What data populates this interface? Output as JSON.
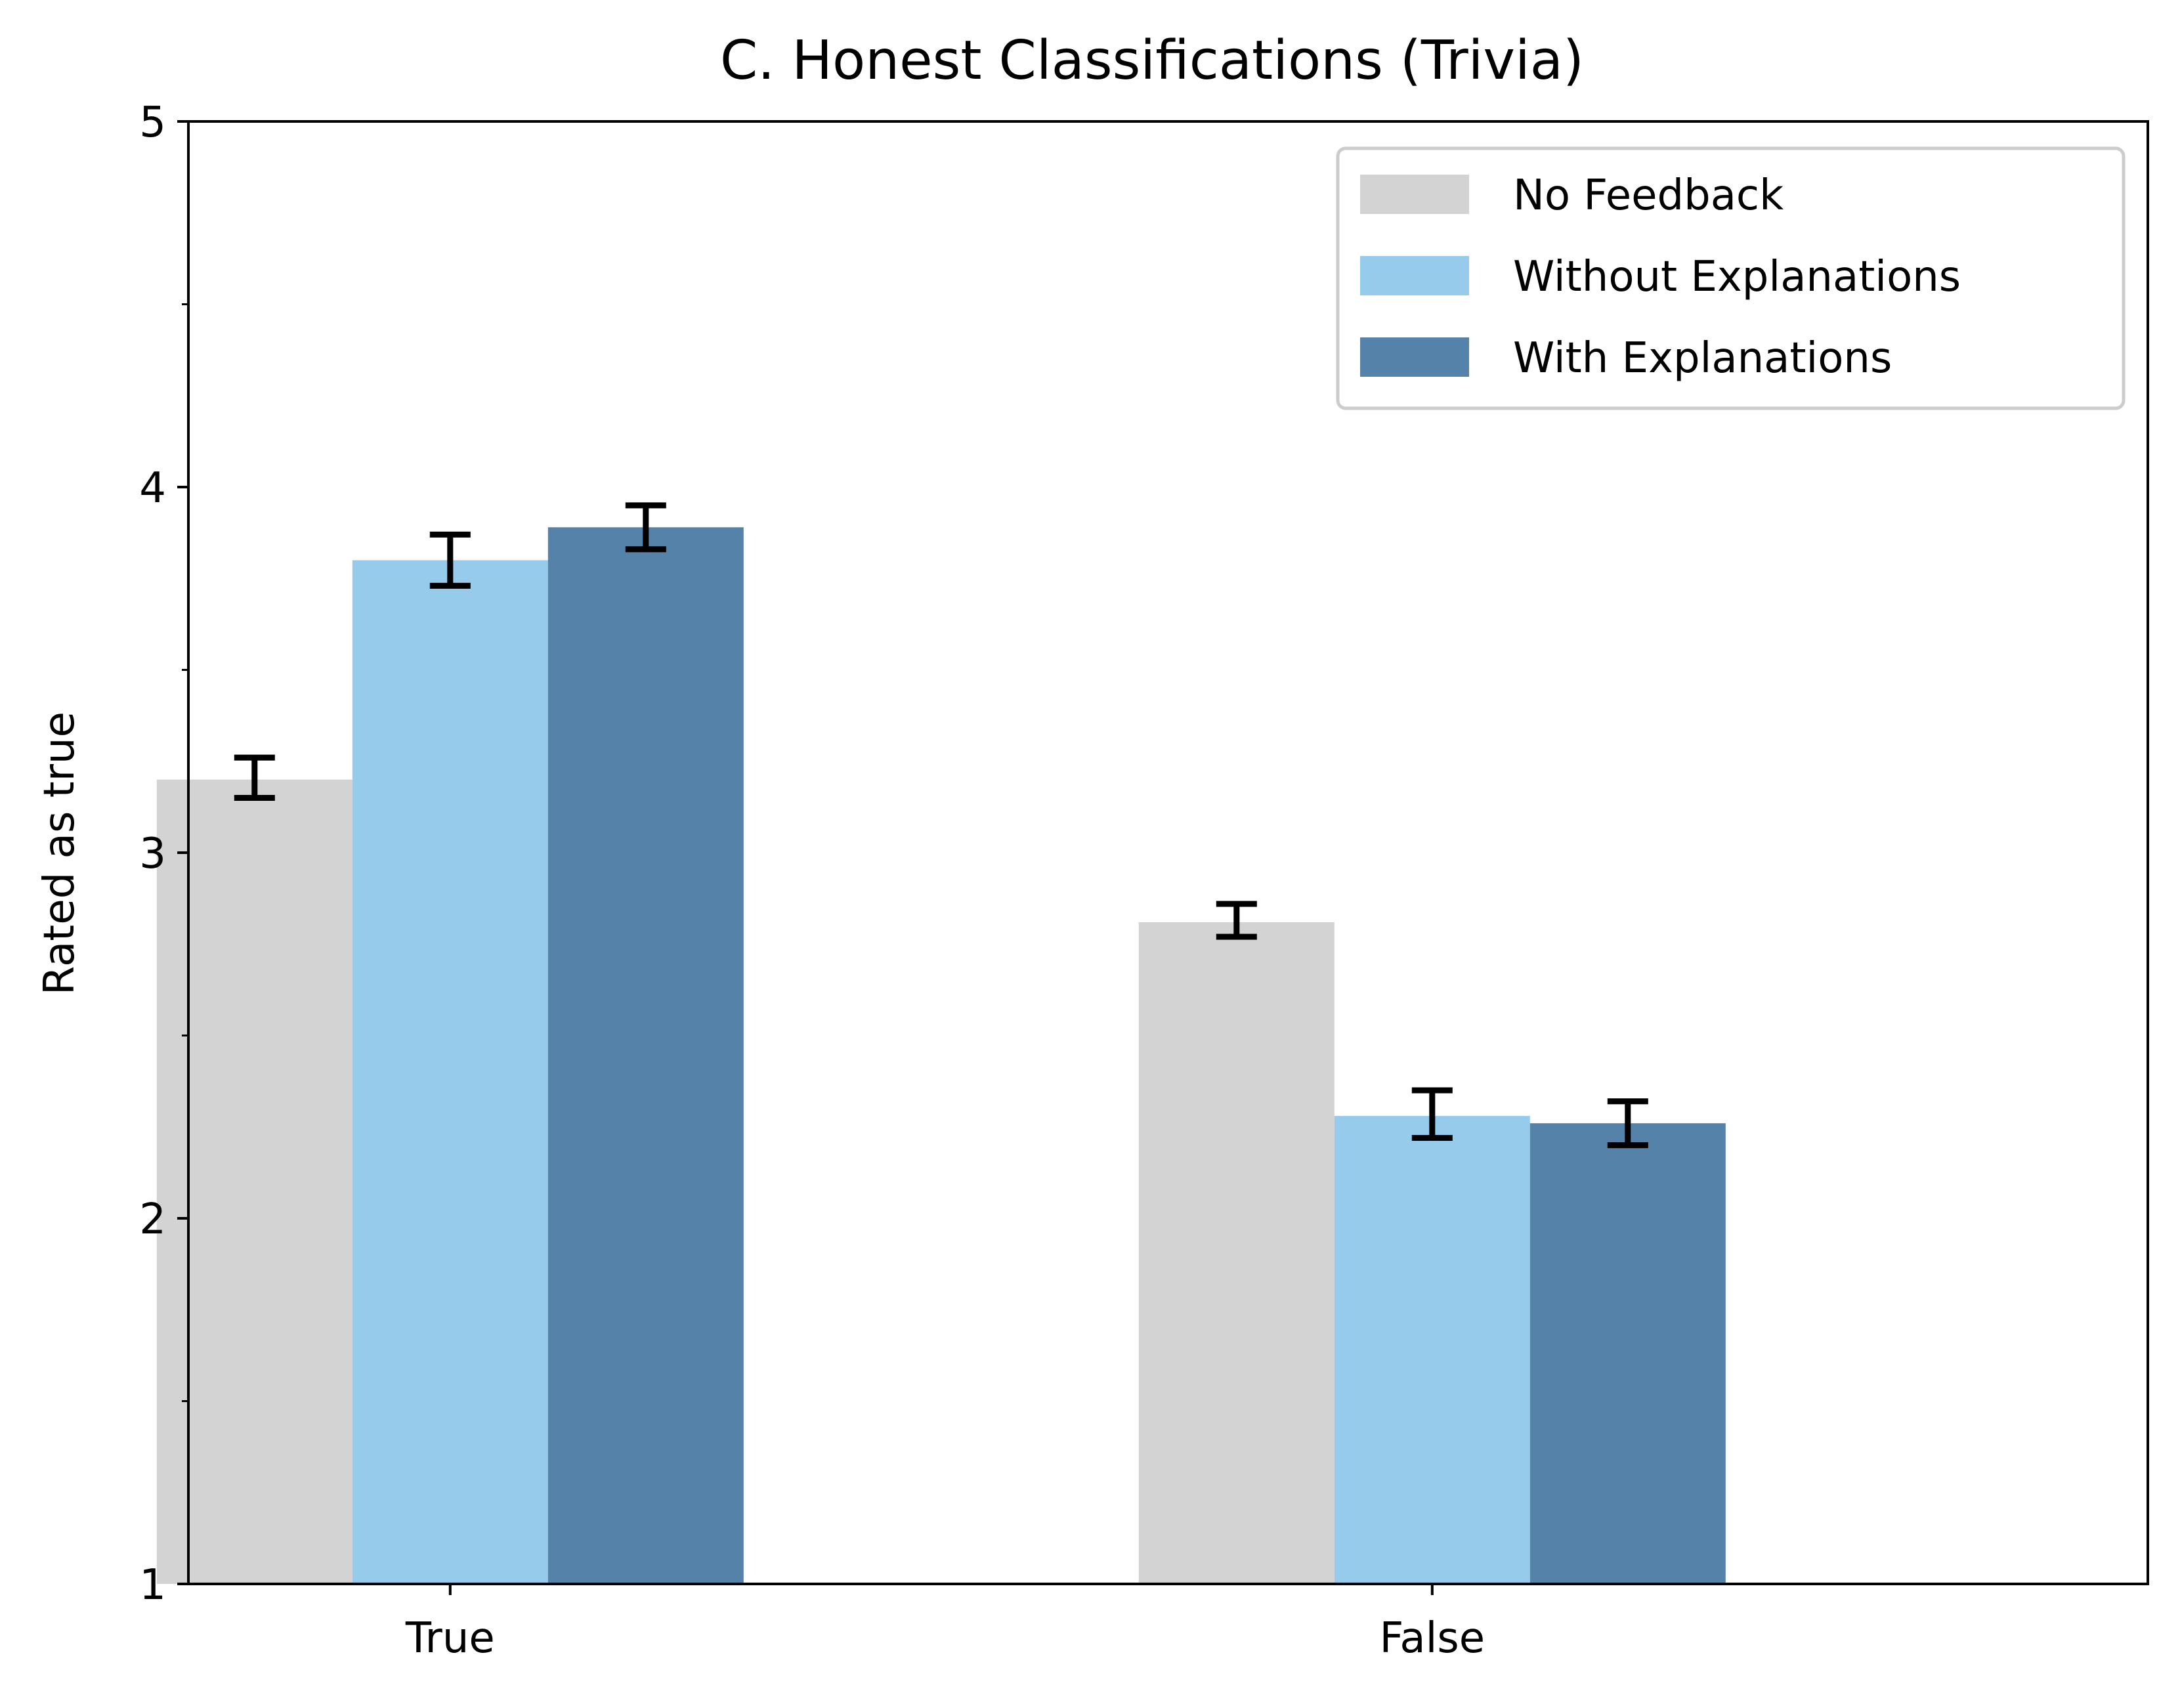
{
  "chart_data": {
    "type": "bar",
    "title": "C. Honest Classifications (Trivia)",
    "xlabel": "",
    "ylabel": "Rated as true",
    "ylim": [
      1,
      5
    ],
    "yticks": [
      {
        "value": 1,
        "label": "1"
      },
      {
        "value": 2,
        "label": "2"
      },
      {
        "value": 3,
        "label": "3"
      },
      {
        "value": 4,
        "label": "4"
      },
      {
        "value": 5,
        "label": "5"
      }
    ],
    "minor_yticks": [
      1.5,
      2.5,
      3.5,
      4.5
    ],
    "categories": [
      "True",
      "False"
    ],
    "series": [
      {
        "name": "No Feedback",
        "color": "#d3d3d3",
        "values": [
          3.2,
          2.81
        ],
        "err_low": [
          3.15,
          2.77
        ],
        "err_high": [
          3.26,
          2.86
        ]
      },
      {
        "name": "Without Explanations",
        "color": "#97cbeb",
        "values": [
          3.8,
          2.28
        ],
        "err_low": [
          3.73,
          2.22
        ],
        "err_high": [
          3.87,
          2.35
        ]
      },
      {
        "name": "With Explanations",
        "color": "#5582a8",
        "values": [
          3.89,
          2.26
        ],
        "err_low": [
          3.83,
          2.2
        ],
        "err_high": [
          3.95,
          2.32
        ]
      }
    ],
    "grid": false,
    "legend_position": "top-right"
  }
}
